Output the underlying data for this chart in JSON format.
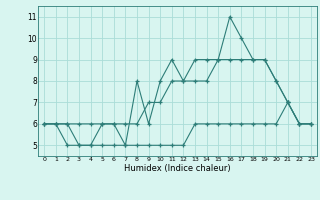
{
  "title": "",
  "xlabel": "Humidex (Indice chaleur)",
  "x": [
    0,
    1,
    2,
    3,
    4,
    5,
    6,
    7,
    8,
    9,
    10,
    11,
    12,
    13,
    14,
    15,
    16,
    17,
    18,
    19,
    20,
    21,
    22,
    23
  ],
  "line_main": [
    6,
    6,
    6,
    5,
    5,
    6,
    6,
    5,
    8,
    6,
    8,
    9,
    8,
    9,
    9,
    9,
    11,
    10,
    9,
    9,
    8,
    7,
    6,
    6
  ],
  "line_upper": [
    6,
    6,
    6,
    6,
    6,
    6,
    6,
    6,
    6,
    7,
    7,
    8,
    8,
    8,
    8,
    9,
    9,
    9,
    9,
    9,
    8,
    7,
    6,
    6
  ],
  "line_lower": [
    6,
    6,
    5,
    5,
    5,
    5,
    5,
    5,
    5,
    5,
    5,
    5,
    5,
    6,
    6,
    6,
    6,
    6,
    6,
    6,
    6,
    7,
    6,
    6
  ],
  "ylim": [
    4.5,
    11.5
  ],
  "xlim": [
    -0.5,
    23.5
  ],
  "yticks": [
    5,
    6,
    7,
    8,
    9,
    10,
    11
  ],
  "xticks": [
    0,
    1,
    2,
    3,
    4,
    5,
    6,
    7,
    8,
    9,
    10,
    11,
    12,
    13,
    14,
    15,
    16,
    17,
    18,
    19,
    20,
    21,
    22,
    23
  ],
  "xtick_labels": [
    "0",
    "1",
    "2",
    "3",
    "4",
    "5",
    "6",
    "7",
    "8",
    "9",
    "10",
    "11",
    "12",
    "13",
    "14",
    "15",
    "16",
    "17",
    "18",
    "19",
    "20",
    "21",
    "22",
    "23"
  ],
  "line_color": "#2d7d78",
  "bg_color": "#d8f5f0",
  "grid_color": "#aaddd8"
}
